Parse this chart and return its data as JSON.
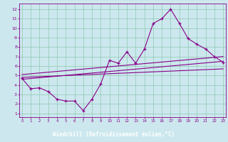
{
  "bg_color": "#cce8ee",
  "plot_bg_color": "#cce8ee",
  "line_color": "#880088",
  "grid_color": "#99ccbb",
  "xlabel": "Windchill (Refroidissement éolien,°C)",
  "xlabel_color": "#ffffff",
  "xlabel_bg": "#660066",
  "ylabel_ticks": [
    1,
    2,
    3,
    4,
    5,
    6,
    7,
    8,
    9,
    10,
    11,
    12
  ],
  "xlabel_ticks": [
    0,
    1,
    2,
    3,
    4,
    5,
    6,
    7,
    8,
    9,
    10,
    11,
    12,
    13,
    14,
    15,
    16,
    17,
    18,
    19,
    20,
    21,
    22,
    23
  ],
  "xlim": [
    -0.3,
    23.3
  ],
  "ylim": [
    0.6,
    12.6
  ],
  "line1_x": [
    0,
    1,
    2,
    3,
    4,
    5,
    6,
    7,
    8,
    9,
    10,
    11,
    12,
    13,
    14,
    15,
    16,
    17,
    18,
    19,
    20,
    21,
    22,
    23
  ],
  "line1_y": [
    4.7,
    3.6,
    3.7,
    3.3,
    2.5,
    2.3,
    2.3,
    1.3,
    2.5,
    4.1,
    6.6,
    6.3,
    7.5,
    6.3,
    7.8,
    10.5,
    11.0,
    12.0,
    10.5,
    8.9,
    8.3,
    7.8,
    7.0,
    6.4
  ],
  "line2_x": [
    0,
    23
  ],
  "line2_y": [
    4.6,
    6.5
  ],
  "line3_x": [
    0,
    23
  ],
  "line3_y": [
    4.8,
    5.7
  ],
  "line4_x": [
    0,
    23
  ],
  "line4_y": [
    5.1,
    7.0
  ]
}
